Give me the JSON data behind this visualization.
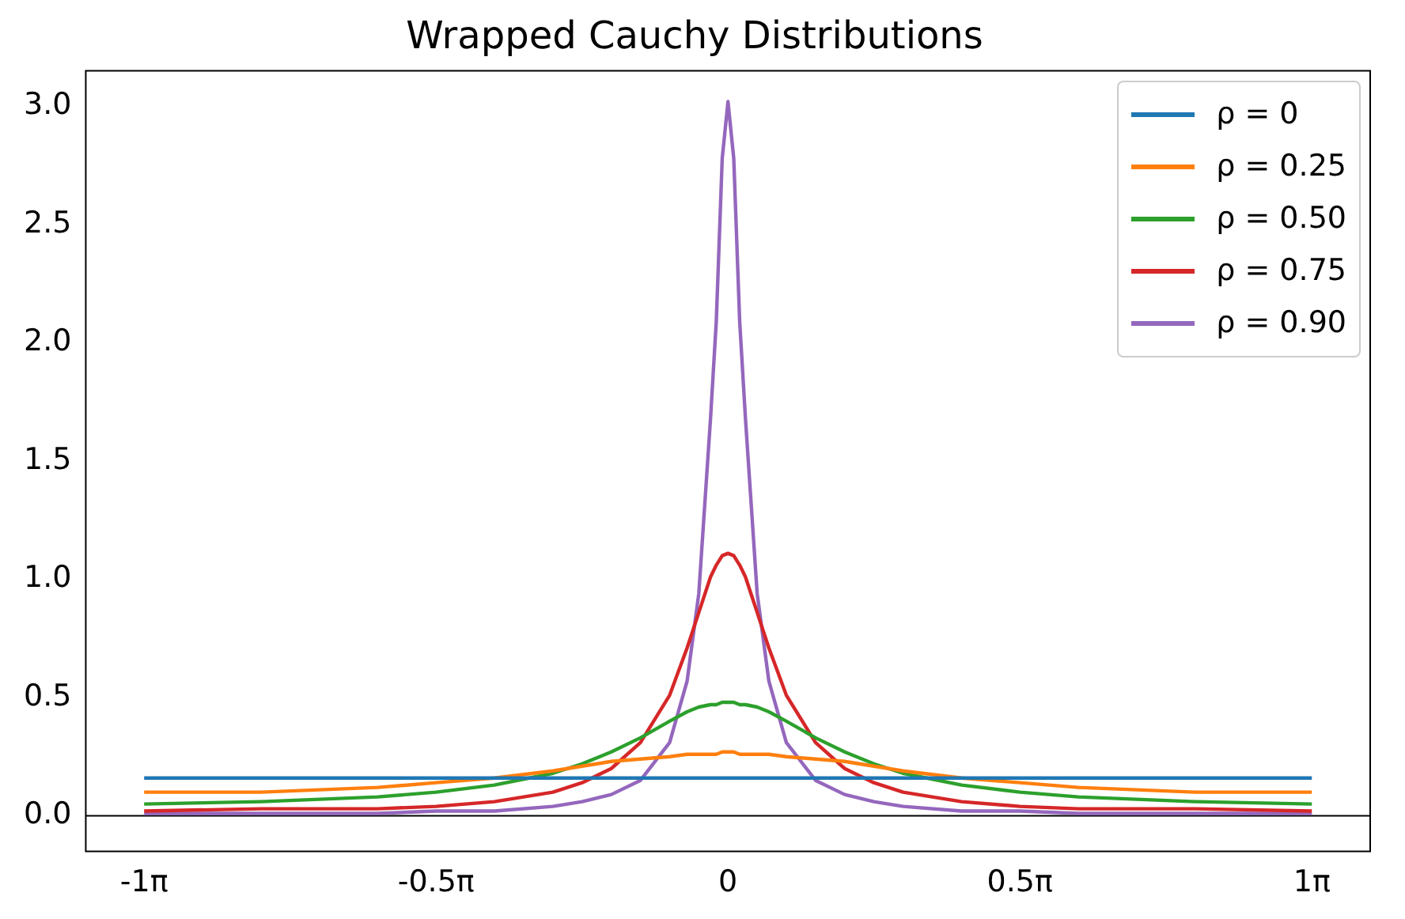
{
  "chart_data": {
    "type": "line",
    "title": "Wrapped Cauchy Distributions",
    "x": [
      -3.142,
      -2.513,
      -1.885,
      -1.571,
      -1.257,
      -0.942,
      -0.785,
      -0.628,
      -0.471,
      -0.314,
      -0.22,
      -0.157,
      -0.094,
      -0.063,
      -0.031,
      0,
      0.031,
      0.063,
      0.094,
      0.157,
      0.22,
      0.314,
      0.471,
      0.628,
      0.785,
      0.942,
      1.257,
      1.571,
      1.885,
      2.513,
      3.142
    ],
    "series": [
      {
        "name": "ρ = 0",
        "color": "#1f77b4",
        "values": [
          0.16,
          0.16,
          0.16,
          0.16,
          0.16,
          0.16,
          0.16,
          0.16,
          0.16,
          0.16,
          0.16,
          0.16,
          0.16,
          0.16,
          0.16,
          0.16,
          0.16,
          0.16,
          0.16,
          0.16,
          0.16,
          0.16,
          0.16,
          0.16,
          0.16,
          0.16,
          0.16,
          0.16,
          0.16,
          0.16,
          0.16
        ]
      },
      {
        "name": "ρ = 0.25",
        "color": "#ff7f0e",
        "values": [
          0.1,
          0.1,
          0.12,
          0.14,
          0.16,
          0.19,
          0.21,
          0.23,
          0.24,
          0.25,
          0.26,
          0.26,
          0.26,
          0.26,
          0.27,
          0.27,
          0.27,
          0.26,
          0.26,
          0.26,
          0.26,
          0.25,
          0.24,
          0.23,
          0.21,
          0.19,
          0.16,
          0.14,
          0.12,
          0.1,
          0.1
        ]
      },
      {
        "name": "ρ = 0.50",
        "color": "#2ca02c",
        "values": [
          0.05,
          0.06,
          0.08,
          0.1,
          0.13,
          0.18,
          0.22,
          0.27,
          0.33,
          0.4,
          0.44,
          0.46,
          0.47,
          0.47,
          0.48,
          0.48,
          0.48,
          0.47,
          0.47,
          0.46,
          0.44,
          0.4,
          0.33,
          0.27,
          0.22,
          0.18,
          0.13,
          0.1,
          0.08,
          0.06,
          0.05
        ]
      },
      {
        "name": "ρ = 0.75",
        "color": "#d62728",
        "values": [
          0.02,
          0.03,
          0.03,
          0.04,
          0.06,
          0.1,
          0.14,
          0.2,
          0.31,
          0.51,
          0.71,
          0.86,
          1.01,
          1.06,
          1.1,
          1.11,
          1.1,
          1.06,
          1.01,
          0.86,
          0.71,
          0.51,
          0.31,
          0.2,
          0.14,
          0.1,
          0.06,
          0.04,
          0.03,
          0.03,
          0.02
        ]
      },
      {
        "name": "ρ = 0.90",
        "color": "#9467bd",
        "values": [
          0.01,
          0.01,
          0.01,
          0.02,
          0.02,
          0.04,
          0.06,
          0.09,
          0.15,
          0.31,
          0.57,
          0.94,
          1.68,
          2.09,
          2.78,
          3.02,
          2.78,
          2.09,
          1.68,
          0.94,
          0.57,
          0.31,
          0.15,
          0.09,
          0.06,
          0.04,
          0.02,
          0.02,
          0.01,
          0.01,
          0.01
        ]
      }
    ],
    "xlim": [
      -3.456,
      3.456
    ],
    "xticks": [
      {
        "value": -3.142,
        "label": "-1π"
      },
      {
        "value": -1.571,
        "label": "-0.5π"
      },
      0,
      {
        "value": 1.571,
        "label": "0.5π"
      },
      {
        "value": 3.142,
        "label": "1π"
      }
    ],
    "ylim": [
      -0.15,
      3.15
    ],
    "yticks": [
      {
        "value": 0,
        "label": "0.0"
      },
      {
        "value": 0.5,
        "label": "0.5"
      },
      {
        "value": 1,
        "label": "1.0"
      },
      {
        "value": 1.5,
        "label": "1.5"
      },
      {
        "value": 2,
        "label": "2.0"
      },
      {
        "value": 2.5,
        "label": "2.5"
      },
      {
        "value": 3,
        "label": "3.0"
      }
    ],
    "ref_lines": [
      {
        "axis": "y",
        "value": 0,
        "color": "#000000"
      }
    ],
    "grid": false,
    "legend": "top right",
    "marker": "none",
    "line_style": "solid"
  }
}
